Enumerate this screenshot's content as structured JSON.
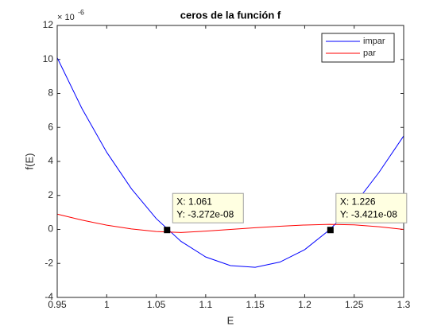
{
  "chart_data": {
    "type": "line",
    "title": "ceros de la función f",
    "x_label": "E",
    "y_label": "f(E)",
    "y_exponent_base": "× 10",
    "y_exponent": "-6",
    "x": [
      0.95,
      0.975,
      1.0,
      1.025,
      1.05,
      1.075,
      1.1,
      1.125,
      1.15,
      1.175,
      1.2,
      1.225,
      1.25,
      1.275,
      1.3
    ],
    "series": [
      {
        "name": "impar",
        "color": "#0000ff",
        "values": [
          10.1,
          7.11,
          4.54,
          2.39,
          0.64,
          -0.7,
          -1.62,
          -2.13,
          -2.23,
          -1.92,
          -1.19,
          -0.03,
          1.45,
          3.35,
          5.5
        ]
      },
      {
        "name": "par",
        "color": "#ff0000",
        "values": [
          0.9,
          0.55,
          0.25,
          0.03,
          -0.12,
          -0.18,
          -0.1,
          0.0,
          0.1,
          0.19,
          0.26,
          0.3,
          0.27,
          0.16,
          0.0
        ]
      }
    ],
    "xlim": [
      0.95,
      1.3
    ],
    "xticks": [
      0.95,
      1,
      1.05,
      1.1,
      1.15,
      1.2,
      1.25,
      1.3
    ],
    "ylim": [
      -4,
      12
    ],
    "yticks": [
      -4,
      -2,
      0,
      2,
      4,
      6,
      8,
      10,
      12
    ],
    "legend": "upper right",
    "datatips": [
      {
        "x": 1.061,
        "y": -0.03272,
        "x_label": "X: 1.061",
        "y_label": "Y: -3.272e-08"
      },
      {
        "x": 1.226,
        "y": -0.03421,
        "x_label": "X: 1.226",
        "y_label": "Y: -3.421e-08"
      }
    ]
  }
}
